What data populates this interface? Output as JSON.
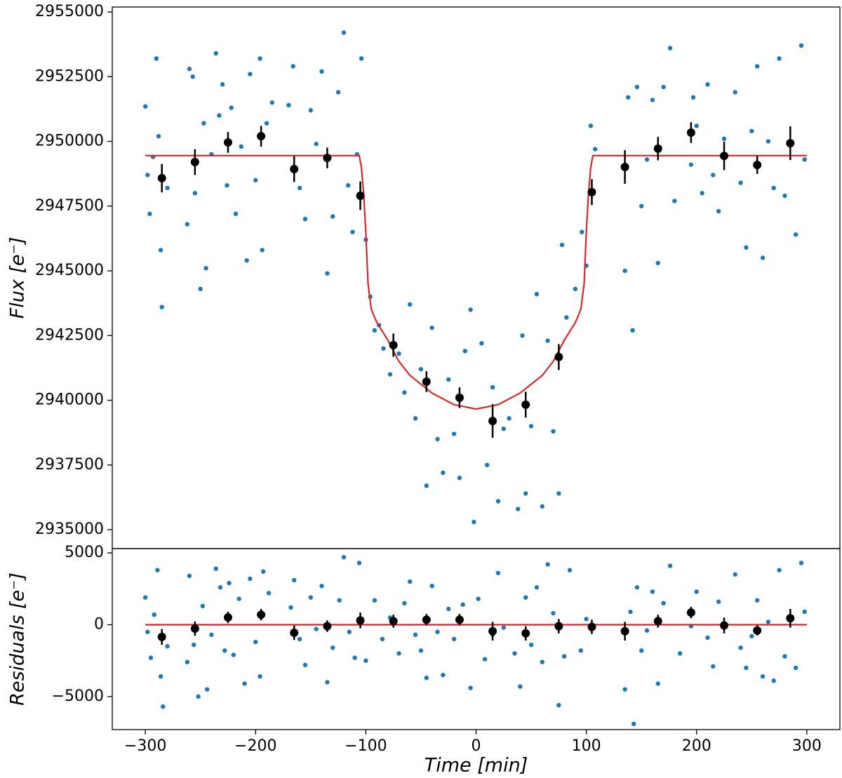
{
  "chart_data": [
    {
      "type": "scatter",
      "ylabel": "Flux [e⁻]",
      "xlim": [
        -330,
        330
      ],
      "ylim": [
        2934270,
        2955190
      ],
      "yticks": [
        2935000,
        2937500,
        2940000,
        2942500,
        2945000,
        2947500,
        2950000,
        2952500,
        2955000
      ],
      "series": [
        {
          "style": "markers",
          "color": "#1f77b4",
          "x": [
            -300,
            -298,
            -296,
            -293,
            -290,
            -288,
            -286,
            -285,
            -280,
            -262,
            -260,
            -257,
            -255,
            -250,
            -247,
            -245,
            -240,
            -236,
            -233,
            -230,
            -226,
            -222,
            -218,
            -213,
            -208,
            -205,
            -200,
            -196,
            -194,
            -190,
            -185,
            -170,
            -166,
            -160,
            -155,
            -150,
            -145,
            -140,
            -135,
            -130,
            -125,
            -120,
            -116,
            -112,
            -108,
            -104,
            -100,
            -96,
            -92,
            -88,
            -84,
            -78,
            -70,
            -65,
            -60,
            -55,
            -50,
            -45,
            -40,
            -35,
            -30,
            -25,
            -20,
            -15,
            -10,
            -5,
            -2,
            5,
            10,
            15,
            20,
            25,
            30,
            38,
            42,
            45,
            50,
            55,
            60,
            65,
            70,
            75,
            78,
            82,
            90,
            96,
            100,
            104,
            108,
            135,
            138,
            142,
            146,
            150,
            155,
            160,
            165,
            170,
            176,
            180,
            195,
            197,
            200,
            205,
            210,
            215,
            220,
            225,
            235,
            240,
            245,
            250,
            255,
            260,
            265,
            270,
            275,
            280,
            290,
            295,
            298
          ],
          "values": [
            2951350,
            2948700,
            2947200,
            2949400,
            2953200,
            2950200,
            2945800,
            2943600,
            2948200,
            2946800,
            2952800,
            2952500,
            2948000,
            2944300,
            2950700,
            2945100,
            2949500,
            2953400,
            2951000,
            2952200,
            2948300,
            2951300,
            2947200,
            2949800,
            2945400,
            2952600,
            2948500,
            2953200,
            2945800,
            2950700,
            2951500,
            2951400,
            2952900,
            2948200,
            2947000,
            2951200,
            2949900,
            2952700,
            2944900,
            2947100,
            2951900,
            2954200,
            2948300,
            2946500,
            2949500,
            2953200,
            2946200,
            2944000,
            2942700,
            2942900,
            2942000,
            2941000,
            2941800,
            2940300,
            2943700,
            2939300,
            2941200,
            2936700,
            2942800,
            2938500,
            2937200,
            2940800,
            2938700,
            2937000,
            2941900,
            2943500,
            2935300,
            2942200,
            2937500,
            2940500,
            2936100,
            2938900,
            2939300,
            2935800,
            2942500,
            2936400,
            2939000,
            2944100,
            2935900,
            2942300,
            2938800,
            2936400,
            2946000,
            2943200,
            2944300,
            2946500,
            2945200,
            2950600,
            2949700,
            2945000,
            2951700,
            2942700,
            2952100,
            2947500,
            2949300,
            2951600,
            2945300,
            2952100,
            2953600,
            2947700,
            2949100,
            2951700,
            2950600,
            2948000,
            2952200,
            2948700,
            2947300,
            2950100,
            2951900,
            2948400,
            2945900,
            2950400,
            2952900,
            2945500,
            2950000,
            2948200,
            2953200,
            2947900,
            2946400,
            2953700,
            2949300
          ]
        },
        {
          "style": "line",
          "color": "#d62728",
          "x": [
            -300,
            -106,
            -104,
            -102,
            -100,
            -98,
            -95,
            -90,
            -80,
            -70,
            -60,
            -40,
            -20,
            0,
            20,
            40,
            60,
            70,
            80,
            90,
            95,
            98,
            100,
            102,
            104,
            106,
            300
          ],
          "values": [
            2949450,
            2949450,
            2949000,
            2948000,
            2946500,
            2944500,
            2943500,
            2943000,
            2942320,
            2941500,
            2940960,
            2940280,
            2939830,
            2939660,
            2939830,
            2940280,
            2940960,
            2941500,
            2942320,
            2943000,
            2943500,
            2944500,
            2946500,
            2948000,
            2949000,
            2949450,
            2949450
          ]
        },
        {
          "style": "errorbars",
          "color": "#000000",
          "x": [
            -285,
            -255,
            -225,
            -195,
            -165,
            -135,
            -105,
            -75,
            -45,
            -15,
            15,
            45,
            75,
            105,
            135,
            165,
            195,
            225,
            255,
            285
          ],
          "values": [
            2948580,
            2949200,
            2949960,
            2950200,
            2948930,
            2949360,
            2947900,
            2942130,
            2940720,
            2940100,
            2939200,
            2939830,
            2941670,
            2948040,
            2949010,
            2949720,
            2950340,
            2949440,
            2949090,
            2949930
          ],
          "errors": [
            550,
            500,
            400,
            400,
            500,
            400,
            550,
            450,
            400,
            400,
            650,
            500,
            500,
            500,
            650,
            450,
            400,
            550,
            350,
            650
          ]
        }
      ]
    },
    {
      "type": "scatter",
      "xlabel": "Time [min]",
      "ylabel": "Residuals [e⁻]",
      "xlim": [
        -330,
        330
      ],
      "ylim": [
        -7300,
        5300
      ],
      "xticks": [
        {
          "value": -300,
          "label": "−300"
        },
        {
          "value": -200,
          "label": "−200"
        },
        {
          "value": -100,
          "label": "−100"
        },
        0,
        100,
        200,
        300
      ],
      "yticks": [
        {
          "value": -5000,
          "label": "−5000"
        },
        0,
        5000
      ],
      "series": [
        {
          "style": "markers",
          "color": "#1f77b4",
          "x": [
            -300,
            -298,
            -295,
            -292,
            -289,
            -286,
            -284,
            -280,
            -262,
            -260,
            -256,
            -252,
            -248,
            -244,
            -240,
            -236,
            -232,
            -228,
            -224,
            -220,
            -215,
            -210,
            -205,
            -200,
            -196,
            -193,
            -188,
            -168,
            -165,
            -160,
            -155,
            -150,
            -145,
            -140,
            -135,
            -130,
            -124,
            -120,
            -115,
            -110,
            -106,
            -100,
            -92,
            -85,
            -78,
            -70,
            -65,
            -60,
            -55,
            -50,
            -45,
            -40,
            -35,
            -30,
            -25,
            -20,
            -12,
            -5,
            2,
            8,
            15,
            20,
            25,
            35,
            40,
            45,
            50,
            55,
            60,
            65,
            70,
            75,
            80,
            85,
            95,
            100,
            104,
            135,
            140,
            143,
            146,
            150,
            155,
            160,
            165,
            170,
            176,
            185,
            195,
            200,
            210,
            215,
            220,
            235,
            240,
            245,
            250,
            255,
            260,
            265,
            270,
            275,
            280,
            290,
            295,
            298
          ],
          "values": [
            1900,
            -500,
            -2300,
            700,
            3800,
            -3600,
            -5700,
            -1500,
            -2600,
            3400,
            -1400,
            -5000,
            1300,
            -4500,
            -700,
            3900,
            2600,
            -1800,
            2900,
            -2100,
            1800,
            -4100,
            3200,
            -1200,
            -3600,
            3700,
            2200,
            1200,
            3100,
            -1000,
            -2800,
            1900,
            -300,
            2700,
            -4000,
            -1600,
            1700,
            4700,
            -500,
            -2300,
            4300,
            -2500,
            1700,
            -1000,
            500,
            -2000,
            1500,
            3000,
            -700,
            -1800,
            -3700,
            2700,
            -500,
            -3500,
            1100,
            -1000,
            1400,
            -4400,
            1800,
            -2400,
            -700,
            3600,
            -200,
            -2000,
            -4300,
            1900,
            -1400,
            2600,
            -2600,
            4200,
            800,
            -5600,
            -2200,
            3800,
            -1800,
            400,
            -300,
            -4500,
            900,
            -6900,
            2600,
            -1800,
            -400,
            2300,
            -4100,
            1500,
            4100,
            -2000,
            -100,
            2300,
            -900,
            -2900,
            1600,
            3500,
            -1600,
            -3000,
            -800,
            1700,
            -3600,
            200,
            -3900,
            3800,
            -2200,
            -3000,
            4300,
            900
          ]
        },
        {
          "style": "line",
          "color": "#d62728",
          "x": [
            -300,
            300
          ],
          "values": [
            0,
            0
          ]
        },
        {
          "style": "errorbars",
          "color": "#000000",
          "x": [
            -285,
            -255,
            -225,
            -195,
            -165,
            -135,
            -105,
            -75,
            -45,
            -15,
            15,
            45,
            75,
            105,
            135,
            165,
            195,
            225,
            255,
            285
          ],
          "values": [
            -850,
            -270,
            510,
            700,
            -560,
            -100,
            300,
            250,
            350,
            350,
            -450,
            -600,
            -100,
            -150,
            -450,
            250,
            850,
            -50,
            -400,
            450
          ],
          "errors": [
            550,
            500,
            400,
            400,
            500,
            400,
            550,
            450,
            400,
            400,
            650,
            500,
            500,
            500,
            650,
            450,
            400,
            550,
            350,
            650
          ]
        }
      ]
    }
  ]
}
